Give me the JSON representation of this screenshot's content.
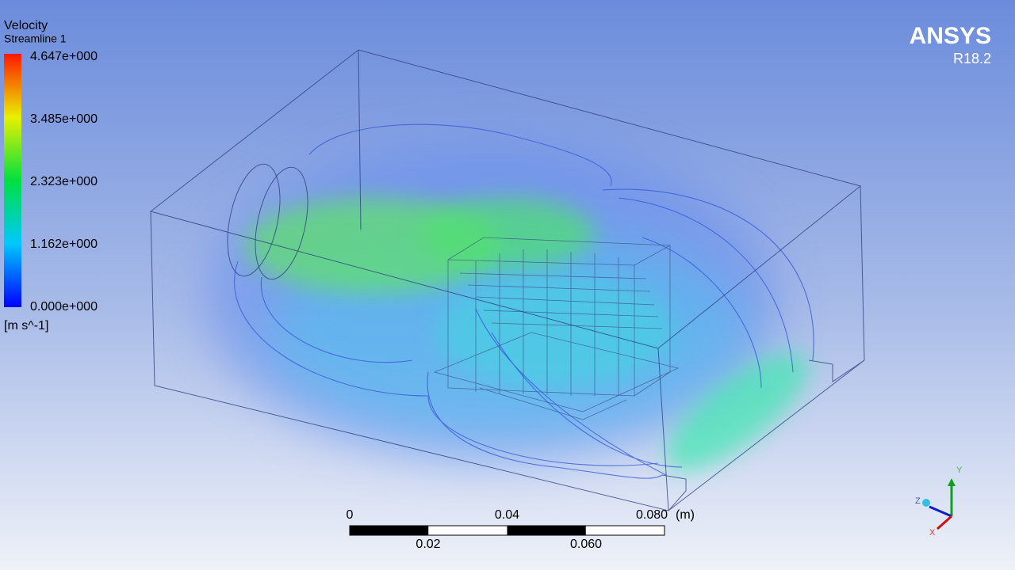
{
  "legend": {
    "title": "Velocity",
    "subtitle": "Streamline 1",
    "levels": [
      "4.647e+000",
      "3.485e+000",
      "2.323e+000",
      "1.162e+000",
      "0.000e+000"
    ],
    "unit": "[m s^-1]"
  },
  "logo": {
    "name": "ANSYS",
    "version": "R18.2"
  },
  "scale_bar": {
    "top_labels": [
      "0",
      "0.04",
      "0.080"
    ],
    "unit": "(m)",
    "bottom_labels": [
      "0.02",
      "0.060"
    ]
  },
  "triad": {
    "y": "Y",
    "z": "Z",
    "x": "X"
  }
}
